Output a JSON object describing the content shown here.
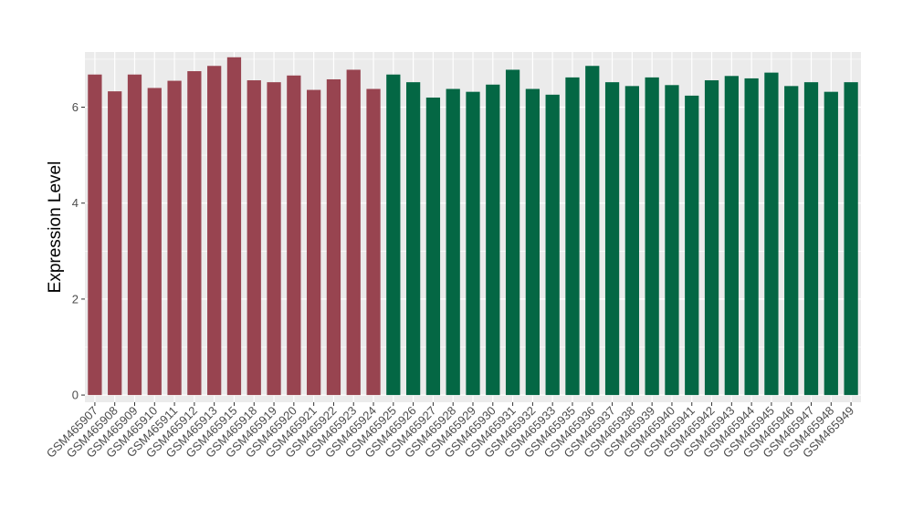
{
  "chart_data": {
    "type": "bar",
    "title": "",
    "xlabel": "",
    "ylabel": "Expression Level",
    "ylim": [
      -0.15,
      7.15
    ],
    "yticks": [
      0,
      2,
      4,
      6
    ],
    "grid": true,
    "legend": "none",
    "categories": [
      "GSM465907",
      "GSM465908",
      "GSM465909",
      "GSM465910",
      "GSM465911",
      "GSM465912",
      "GSM465913",
      "GSM465915",
      "GSM465918",
      "GSM465919",
      "GSM465920",
      "GSM465921",
      "GSM465922",
      "GSM465923",
      "GSM465924",
      "GSM465925",
      "GSM465926",
      "GSM465927",
      "GSM465928",
      "GSM465929",
      "GSM465930",
      "GSM465931",
      "GSM465932",
      "GSM465933",
      "GSM465935",
      "GSM465936",
      "GSM465937",
      "GSM465938",
      "GSM465939",
      "GSM465940",
      "GSM465941",
      "GSM465942",
      "GSM465943",
      "GSM465944",
      "GSM465945",
      "GSM465946",
      "GSM465947",
      "GSM465948",
      "GSM465949"
    ],
    "values": [
      6.68,
      6.33,
      6.68,
      6.4,
      6.55,
      6.75,
      6.86,
      7.04,
      6.56,
      6.52,
      6.66,
      6.36,
      6.58,
      6.78,
      6.38,
      6.68,
      6.52,
      6.2,
      6.38,
      6.32,
      6.47,
      6.78,
      6.38,
      6.26,
      6.62,
      6.86,
      6.52,
      6.44,
      6.62,
      6.46,
      6.24,
      6.56,
      6.65,
      6.6,
      6.72,
      6.44,
      6.52,
      6.32,
      6.52
    ],
    "bar_colors": [
      "#984450",
      "#984450",
      "#984450",
      "#984450",
      "#984450",
      "#984450",
      "#984450",
      "#984450",
      "#984450",
      "#984450",
      "#984450",
      "#984450",
      "#984450",
      "#984450",
      "#984450",
      "#046744",
      "#046744",
      "#046744",
      "#046744",
      "#046744",
      "#046744",
      "#046744",
      "#046744",
      "#046744",
      "#046744",
      "#046744",
      "#046744",
      "#046744",
      "#046744",
      "#046744",
      "#046744",
      "#046744",
      "#046744",
      "#046744",
      "#046744",
      "#046744",
      "#046744",
      "#046744",
      "#046744"
    ],
    "panel_background": "#ebebeb",
    "gridline_color": "#ffffff"
  }
}
